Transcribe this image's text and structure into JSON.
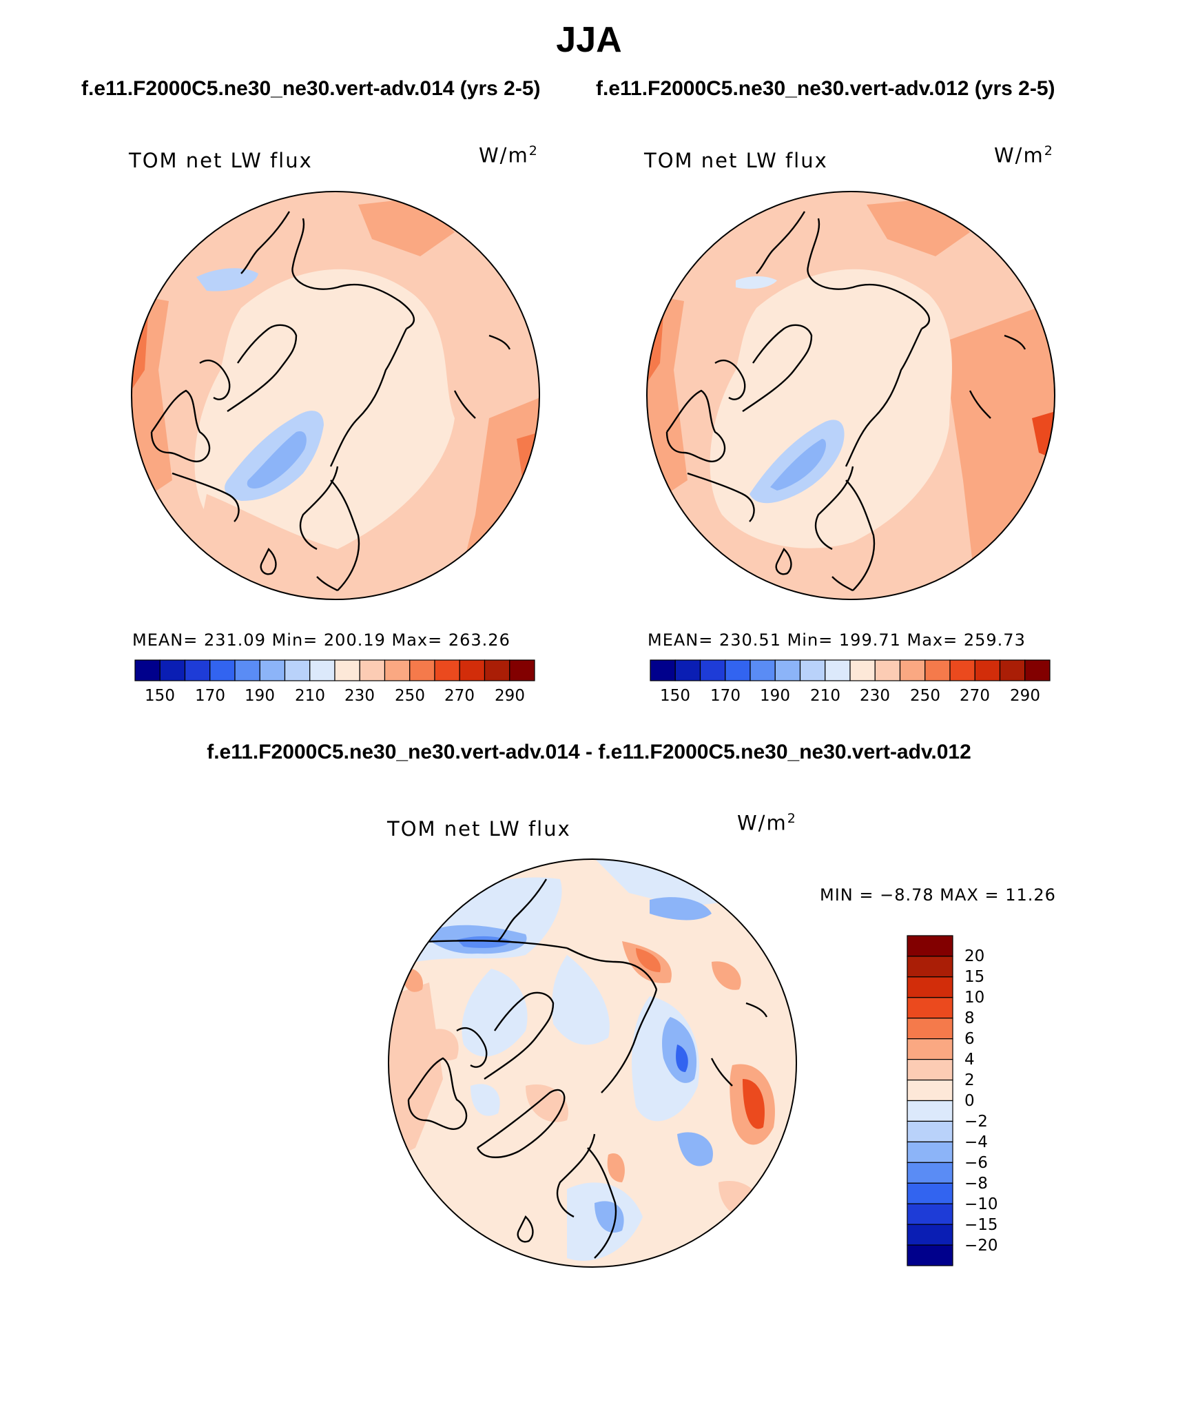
{
  "season": "JJA",
  "case_titles": {
    "left": "f.e11.F2000C5.ne30_ne30.vert-adv.014 (yrs 2-5)",
    "right": "f.e11.F2000C5.ne30_ne30.vert-adv.012 (yrs 2-5)"
  },
  "diff_title": "f.e11.F2000C5.ne30_ne30.vert-adv.014 - f.e11.F2000C5.ne30_ne30.vert-adv.012",
  "panels": [
    {
      "label": "TOM net LW flux",
      "units_base": "W/m",
      "units_sup": "2",
      "stats": "MEAN= 231.09   Min= 200.19   Max= 263.26",
      "colorbar_labels": [
        "150",
        "170",
        "190",
        "210",
        "230",
        "250",
        "270",
        "290"
      ]
    },
    {
      "label": "TOM net LW flux",
      "units_base": "W/m",
      "units_sup": "2",
      "stats": "MEAN= 230.51   Min= 199.71   Max= 259.73",
      "colorbar_labels": [
        "150",
        "170",
        "190",
        "210",
        "230",
        "250",
        "270",
        "290"
      ]
    }
  ],
  "diff_panel": {
    "label": "TOM net LW flux",
    "units_base": "W/m",
    "units_sup": "2",
    "stats": "MIN =   −8.78 MAX =   11.26",
    "colorbar_labels": [
      "20",
      "15",
      "10",
      "8",
      "6",
      "4",
      "2",
      "0",
      "−2",
      "−4",
      "−6",
      "−8",
      "−10",
      "−15",
      "−20"
    ]
  },
  "colors": {
    "abs_levels": [
      "#00008c",
      "#0a1eb4",
      "#1e3cd7",
      "#3264f0",
      "#5a8cf5",
      "#8cb4f8",
      "#b9d2fa",
      "#dce9fb",
      "#fde8d8",
      "#fcccb4",
      "#faa882",
      "#f57a4b",
      "#eb4a1e",
      "#d22d0a",
      "#aa1e06",
      "#820000"
    ],
    "diff_levels_top_to_bottom": [
      "#820000",
      "#aa1e06",
      "#d22d0a",
      "#eb4a1e",
      "#f57a4b",
      "#faa882",
      "#fcccb4",
      "#fde8d8",
      "#dce9fb",
      "#b9d2fa",
      "#8cb4f8",
      "#5a8cf5",
      "#3264f0",
      "#1e3cd7",
      "#0a1eb4",
      "#00008c"
    ]
  }
}
